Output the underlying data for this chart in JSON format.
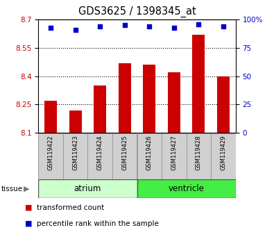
{
  "title": "GDS3625 / 1398345_at",
  "samples": [
    "GSM119422",
    "GSM119423",
    "GSM119424",
    "GSM119425",
    "GSM119426",
    "GSM119427",
    "GSM119428",
    "GSM119429"
  ],
  "bar_values": [
    8.27,
    8.22,
    8.35,
    8.47,
    8.46,
    8.42,
    8.62,
    8.4
  ],
  "percentile_values": [
    93,
    91,
    94,
    95,
    94,
    93,
    96,
    94
  ],
  "ymin": 8.1,
  "ymax": 8.7,
  "yticks": [
    8.1,
    8.25,
    8.4,
    8.55,
    8.7
  ],
  "ytick_labels": [
    "8.1",
    "8.25",
    "8.4",
    "8.55",
    "8.7"
  ],
  "y2min": 0,
  "y2max": 100,
  "y2ticks": [
    0,
    25,
    50,
    75,
    100
  ],
  "y2tick_labels": [
    "0",
    "25",
    "50",
    "75",
    "100%"
  ],
  "bar_color": "#cc0000",
  "dot_color": "#0000cc",
  "bar_width": 0.5,
  "tissue_groups": [
    {
      "label": "atrium",
      "start": 0,
      "end": 3,
      "color": "#ccffcc"
    },
    {
      "label": "ventricle",
      "start": 4,
      "end": 7,
      "color": "#44dd44"
    }
  ],
  "legend_entries": [
    {
      "color": "#cc0000",
      "label": "transformed count"
    },
    {
      "color": "#0000cc",
      "label": "percentile rank within the sample"
    }
  ],
  "sample_box_color": "#d0d0d0",
  "sample_box_edge": "#aaaaaa"
}
